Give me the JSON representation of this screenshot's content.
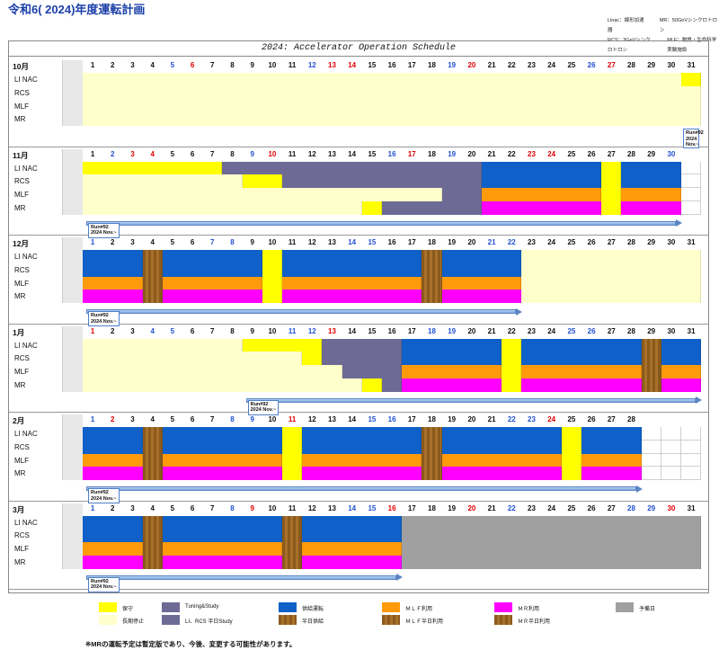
{
  "title": "令和6( 2024)年度運転計画",
  "abbrev": [
    [
      "Linac：線形加速器",
      "MR：50GeVシンクロトロン"
    ],
    [
      "RCS：3GeVシンクロトロン",
      "MLF：物質・生命科学実験施設"
    ]
  ],
  "schedule_title": "2024: Accelerator Operation Schedule",
  "row_labels": [
    "LI NAC",
    "RCS",
    "MLF",
    "MR"
  ],
  "run_label": [
    "Run#92",
    "2024 Nov.~"
  ],
  "colors": {
    "hozen": "#ffff00",
    "teishi": "#ffffcc",
    "tuning": "#6e6a96",
    "kyoukyu": "#0f60c8",
    "mlf": "#ff9a0a",
    "mr": "#ff00ff",
    "hiday_kyoukyu": "#9a6420",
    "yobi": "#a0a0a0",
    "sun": "#2050d0",
    "hol": "#e00000"
  },
  "months": [
    {
      "name": "10月",
      "days": 31,
      "sun": [
        5,
        12,
        19,
        26
      ],
      "hol": [
        6,
        13,
        14,
        20,
        27
      ],
      "rows": [
        [
          [
            1,
            31,
            "teishi"
          ],
          [
            31,
            31,
            "hozen"
          ]
        ],
        [
          [
            1,
            31,
            "teishi"
          ]
        ],
        [
          [
            1,
            31,
            "teishi"
          ]
        ],
        [
          [
            1,
            31,
            "teishi"
          ]
        ]
      ],
      "run_start": 31,
      "run_end": 31
    },
    {
      "name": "11月",
      "days": 30,
      "sun": [
        2,
        9,
        16,
        19,
        30
      ],
      "hol": [
        3,
        4,
        10,
        17,
        23,
        24
      ],
      "rows": [
        [
          [
            1,
            7,
            "hozen"
          ],
          [
            8,
            20,
            "tuning"
          ],
          [
            21,
            26,
            "kyoukyu"
          ],
          [
            27,
            27,
            "hozen"
          ],
          [
            28,
            30,
            "kyoukyu"
          ]
        ],
        [
          [
            1,
            8,
            "teishi"
          ],
          [
            9,
            10,
            "hozen"
          ],
          [
            11,
            20,
            "tuning"
          ],
          [
            21,
            26,
            "kyoukyu"
          ],
          [
            27,
            27,
            "hozen"
          ],
          [
            28,
            30,
            "kyoukyu"
          ]
        ],
        [
          [
            1,
            18,
            "teishi"
          ],
          [
            19,
            20,
            "tuning"
          ],
          [
            21,
            26,
            "mlf"
          ],
          [
            27,
            27,
            "hozen"
          ],
          [
            28,
            30,
            "mlf"
          ]
        ],
        [
          [
            1,
            14,
            "teishi"
          ],
          [
            15,
            15,
            "hozen"
          ],
          [
            16,
            20,
            "tuning"
          ],
          [
            21,
            26,
            "mr"
          ],
          [
            27,
            27,
            "hozen"
          ],
          [
            28,
            30,
            "mr"
          ]
        ]
      ],
      "run_start": 1,
      "run_end": 30
    },
    {
      "name": "12月",
      "days": 31,
      "sun": [
        1,
        7,
        8,
        14,
        15,
        21,
        22
      ],
      "hol": [],
      "rows": [
        [
          [
            1,
            3,
            "kyoukyu"
          ],
          [
            4,
            4,
            "hiday_kyoukyu"
          ],
          [
            5,
            9,
            "kyoukyu"
          ],
          [
            10,
            10,
            "hozen"
          ],
          [
            11,
            17,
            "kyoukyu"
          ],
          [
            18,
            18,
            "hiday_kyoukyu"
          ],
          [
            19,
            22,
            "kyoukyu"
          ],
          [
            23,
            31,
            "teishi"
          ]
        ],
        [
          [
            1,
            3,
            "kyoukyu"
          ],
          [
            4,
            4,
            "hiday_kyoukyu"
          ],
          [
            5,
            9,
            "kyoukyu"
          ],
          [
            10,
            10,
            "hozen"
          ],
          [
            11,
            17,
            "kyoukyu"
          ],
          [
            18,
            18,
            "hiday_kyoukyu"
          ],
          [
            19,
            22,
            "kyoukyu"
          ],
          [
            23,
            31,
            "teishi"
          ]
        ],
        [
          [
            1,
            3,
            "mlf"
          ],
          [
            4,
            4,
            "hiday_kyoukyu"
          ],
          [
            5,
            9,
            "mlf"
          ],
          [
            10,
            10,
            "hozen"
          ],
          [
            11,
            17,
            "mlf"
          ],
          [
            18,
            18,
            "hiday_kyoukyu"
          ],
          [
            19,
            22,
            "mlf"
          ],
          [
            23,
            31,
            "teishi"
          ]
        ],
        [
          [
            1,
            3,
            "mr"
          ],
          [
            4,
            4,
            "hiday_kyoukyu"
          ],
          [
            5,
            9,
            "mr"
          ],
          [
            10,
            10,
            "hozen"
          ],
          [
            11,
            17,
            "mr"
          ],
          [
            18,
            18,
            "hiday_kyoukyu"
          ],
          [
            19,
            22,
            "mr"
          ],
          [
            23,
            31,
            "teishi"
          ]
        ]
      ],
      "run_start": 1,
      "run_end": 22
    },
    {
      "name": "1月",
      "days": 31,
      "sun": [
        4,
        5,
        11,
        12,
        18,
        19,
        25,
        26
      ],
      "hol": [
        1,
        13
      ],
      "rows": [
        [
          [
            1,
            8,
            "teishi"
          ],
          [
            9,
            12,
            "hozen"
          ],
          [
            13,
            16,
            "tuning"
          ],
          [
            17,
            21,
            "kyoukyu"
          ],
          [
            22,
            22,
            "hozen"
          ],
          [
            23,
            28,
            "kyoukyu"
          ],
          [
            29,
            29,
            "hiday_kyoukyu"
          ],
          [
            30,
            31,
            "kyoukyu"
          ]
        ],
        [
          [
            1,
            11,
            "teishi"
          ],
          [
            12,
            12,
            "hozen"
          ],
          [
            13,
            16,
            "tuning"
          ],
          [
            17,
            21,
            "kyoukyu"
          ],
          [
            22,
            22,
            "hozen"
          ],
          [
            23,
            28,
            "kyoukyu"
          ],
          [
            29,
            29,
            "hiday_kyoukyu"
          ],
          [
            30,
            31,
            "kyoukyu"
          ]
        ],
        [
          [
            1,
            13,
            "teishi"
          ],
          [
            14,
            16,
            "tuning"
          ],
          [
            17,
            21,
            "mlf"
          ],
          [
            22,
            22,
            "hozen"
          ],
          [
            23,
            28,
            "mlf"
          ],
          [
            29,
            29,
            "hiday_kyoukyu"
          ],
          [
            30,
            31,
            "mlf"
          ]
        ],
        [
          [
            1,
            14,
            "teishi"
          ],
          [
            15,
            15,
            "hozen"
          ],
          [
            16,
            16,
            "tuning"
          ],
          [
            17,
            21,
            "mr"
          ],
          [
            22,
            22,
            "hozen"
          ],
          [
            23,
            28,
            "mr"
          ],
          [
            29,
            29,
            "hiday_kyoukyu"
          ],
          [
            30,
            31,
            "mr"
          ]
        ]
      ],
      "run_start": 9,
      "run_end": 31
    },
    {
      "name": "2月",
      "days": 28,
      "sun": [
        1,
        8,
        9,
        15,
        16,
        22,
        23
      ],
      "hol": [
        2,
        11,
        24
      ],
      "rows": [
        [
          [
            1,
            3,
            "kyoukyu"
          ],
          [
            4,
            4,
            "hiday_kyoukyu"
          ],
          [
            5,
            10,
            "kyoukyu"
          ],
          [
            11,
            11,
            "hozen"
          ],
          [
            12,
            17,
            "kyoukyu"
          ],
          [
            18,
            18,
            "hiday_kyoukyu"
          ],
          [
            19,
            24,
            "kyoukyu"
          ],
          [
            25,
            25,
            "hozen"
          ],
          [
            26,
            28,
            "kyoukyu"
          ]
        ],
        [
          [
            1,
            3,
            "kyoukyu"
          ],
          [
            4,
            4,
            "hiday_kyoukyu"
          ],
          [
            5,
            10,
            "kyoukyu"
          ],
          [
            11,
            11,
            "hozen"
          ],
          [
            12,
            17,
            "kyoukyu"
          ],
          [
            18,
            18,
            "hiday_kyoukyu"
          ],
          [
            19,
            24,
            "kyoukyu"
          ],
          [
            25,
            25,
            "hozen"
          ],
          [
            26,
            28,
            "kyoukyu"
          ]
        ],
        [
          [
            1,
            3,
            "mlf"
          ],
          [
            4,
            4,
            "hiday_kyoukyu"
          ],
          [
            5,
            10,
            "mlf"
          ],
          [
            11,
            11,
            "hozen"
          ],
          [
            12,
            17,
            "mlf"
          ],
          [
            18,
            18,
            "hiday_kyoukyu"
          ],
          [
            19,
            24,
            "mlf"
          ],
          [
            25,
            25,
            "hozen"
          ],
          [
            26,
            28,
            "mlf"
          ]
        ],
        [
          [
            1,
            3,
            "mr"
          ],
          [
            4,
            4,
            "hiday_kyoukyu"
          ],
          [
            5,
            10,
            "mr"
          ],
          [
            11,
            11,
            "hozen"
          ],
          [
            12,
            17,
            "mr"
          ],
          [
            18,
            18,
            "hiday_kyoukyu"
          ],
          [
            19,
            24,
            "mr"
          ],
          [
            25,
            25,
            "hozen"
          ],
          [
            26,
            28,
            "mr"
          ]
        ]
      ],
      "run_start": 1,
      "run_end": 28
    },
    {
      "name": "3月",
      "days": 31,
      "sun": [
        1,
        8,
        14,
        15,
        22,
        28,
        29
      ],
      "hol": [
        9,
        16,
        20,
        30
      ],
      "rows": [
        [
          [
            1,
            3,
            "kyoukyu"
          ],
          [
            4,
            4,
            "hiday_kyoukyu"
          ],
          [
            5,
            10,
            "kyoukyu"
          ],
          [
            11,
            11,
            "hiday_kyoukyu"
          ],
          [
            12,
            16,
            "kyoukyu"
          ],
          [
            17,
            31,
            "yobi"
          ]
        ],
        [
          [
            1,
            3,
            "kyoukyu"
          ],
          [
            4,
            4,
            "hiday_kyoukyu"
          ],
          [
            5,
            10,
            "kyoukyu"
          ],
          [
            11,
            11,
            "hiday_kyoukyu"
          ],
          [
            12,
            16,
            "kyoukyu"
          ],
          [
            17,
            31,
            "yobi"
          ]
        ],
        [
          [
            1,
            3,
            "mlf"
          ],
          [
            4,
            4,
            "hiday_kyoukyu"
          ],
          [
            5,
            10,
            "mlf"
          ],
          [
            11,
            11,
            "hiday_kyoukyu"
          ],
          [
            12,
            16,
            "mlf"
          ],
          [
            17,
            31,
            "yobi"
          ]
        ],
        [
          [
            1,
            3,
            "mr"
          ],
          [
            4,
            4,
            "hiday_kyoukyu"
          ],
          [
            5,
            10,
            "mr"
          ],
          [
            11,
            11,
            "hiday_kyoukyu"
          ],
          [
            12,
            16,
            "mr"
          ],
          [
            17,
            31,
            "yobi"
          ]
        ]
      ],
      "run_start": 1,
      "run_end": 16
    }
  ],
  "legend": [
    {
      "color": "hozen",
      "label": "保守"
    },
    {
      "color": "teishi",
      "label": "長期停止"
    },
    {
      "color": "tuning",
      "label": "Tuning&Study"
    },
    {
      "color": "tuning",
      "label": "LI、RCS 半日Study"
    },
    {
      "color": "kyoukyu",
      "label": "供給運転"
    },
    {
      "color": "kyoukyu",
      "label": "半日供給"
    },
    {
      "color": "mlf",
      "label": "ＭＬＦ利用"
    },
    {
      "color": "mlf",
      "label": "ＭＬＦ半日利用"
    },
    {
      "color": "mr",
      "label": "ＭＲ利用"
    },
    {
      "color": "mr",
      "label": "ＭＲ半日利用"
    },
    {
      "color": "yobi",
      "label": "予備日"
    }
  ],
  "note": "※MRの運転予定は暫定版であり、今後、変更する可能性があります。"
}
